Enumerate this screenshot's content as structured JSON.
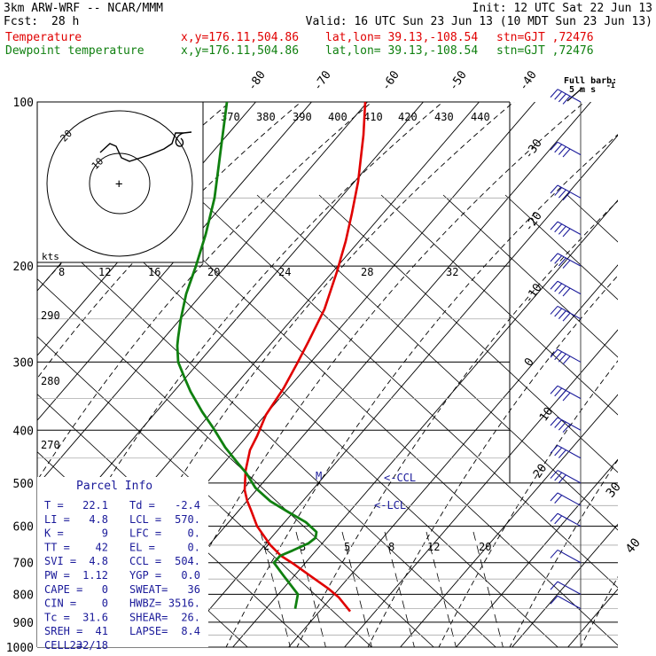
{
  "header": {
    "line1_left": "3km ARW-WRF -- NCAR/MMM",
    "line1_right": "Init: 12 UTC Sat 22 Jun 13",
    "fcst_label": "Fcst:",
    "fcst_value": "28 h",
    "valid": "Valid: 16 UTC Sun 23 Jun 13 (10 MDT Sun 23 Jun 13)",
    "temp_name": "Temperature",
    "dew_name": "Dewpoint temperature",
    "xy": "x,y=176.11,504.86",
    "latlon": "lat,lon= 39.13,-108.54",
    "stn": "stn=GJT ,72476",
    "barb_label_1": "Full barb:",
    "barb_label_2": "5 m s",
    "barb_label_exp": "-1"
  },
  "colors": {
    "temp": "#e00000",
    "dew": "#108010",
    "info": "#1a1a9a",
    "grid": "#000000"
  },
  "chart_data": {
    "type": "line",
    "title": "",
    "xlabel": "",
    "ylabel": "",
    "pressure_levels": [
      100,
      200,
      300,
      400,
      500,
      600,
      700,
      800,
      900,
      1000
    ],
    "minor_pressure_levels": [
      150,
      250,
      350,
      450,
      550,
      650,
      750,
      850,
      950
    ],
    "isotherm_labels": [
      -80,
      -70,
      -60,
      -50,
      -40,
      -30,
      -20,
      -10,
      0,
      10,
      20,
      30,
      40
    ],
    "theta_labels": [
      370,
      380,
      390,
      400,
      410,
      420,
      430,
      440
    ],
    "theta_e_labels": [
      290,
      280,
      270
    ],
    "mixing_ratio_labels": [
      2,
      3,
      5,
      8,
      12,
      20
    ],
    "series": [
      {
        "name": "Temperature",
        "points": [
          [
            412,
            100
          ],
          [
            410,
            115
          ],
          [
            404,
            140
          ],
          [
            397,
            160
          ],
          [
            390,
            180
          ],
          [
            380,
            205
          ],
          [
            366,
            240
          ],
          [
            348,
            275
          ],
          [
            336,
            300
          ],
          [
            320,
            335
          ],
          [
            300,
            375
          ],
          [
            290,
            410
          ],
          [
            282,
            435
          ],
          [
            277,
            475
          ],
          [
            276,
            515
          ],
          [
            279,
            540
          ],
          [
            283,
            560
          ],
          [
            290,
            600
          ],
          [
            305,
            650
          ],
          [
            317,
            680
          ],
          [
            332,
            705
          ],
          [
            350,
            740
          ],
          [
            370,
            780
          ],
          [
            382,
            810
          ],
          [
            395,
            860
          ]
        ]
      },
      {
        "name": "Dewpoint temperature",
        "points": [
          [
            256,
            100
          ],
          [
            242,
            150
          ],
          [
            232,
            175
          ],
          [
            221,
            200
          ],
          [
            210,
            225
          ],
          [
            204,
            250
          ],
          [
            201,
            270
          ],
          [
            200,
            280
          ],
          [
            201,
            300
          ],
          [
            208,
            320
          ],
          [
            215,
            340
          ],
          [
            228,
            370
          ],
          [
            240,
            395
          ],
          [
            254,
            430
          ],
          [
            266,
            455
          ],
          [
            278,
            480
          ],
          [
            288,
            510
          ],
          [
            305,
            540
          ],
          [
            325,
            565
          ],
          [
            345,
            590
          ],
          [
            357,
            615
          ],
          [
            356,
            630
          ],
          [
            348,
            645
          ],
          [
            330,
            665
          ],
          [
            316,
            680
          ],
          [
            309,
            700
          ],
          [
            320,
            740
          ],
          [
            336,
            800
          ],
          [
            333,
            850
          ]
        ]
      }
    ],
    "wind_barbs": [
      {
        "p": 100,
        "speed": 40,
        "dir": 280
      },
      {
        "p": 125,
        "speed": 40,
        "dir": 280
      },
      {
        "p": 150,
        "speed": 40,
        "dir": 275
      },
      {
        "p": 175,
        "speed": 35,
        "dir": 275
      },
      {
        "p": 200,
        "speed": 35,
        "dir": 275
      },
      {
        "p": 225,
        "speed": 30,
        "dir": 270
      },
      {
        "p": 250,
        "speed": 30,
        "dir": 270
      },
      {
        "p": 300,
        "speed": 25,
        "dir": 265
      },
      {
        "p": 350,
        "speed": 20,
        "dir": 265
      },
      {
        "p": 400,
        "speed": 20,
        "dir": 260
      },
      {
        "p": 450,
        "speed": 15,
        "dir": 260
      },
      {
        "p": 500,
        "speed": 15,
        "dir": 255
      },
      {
        "p": 550,
        "speed": 10,
        "dir": 250
      },
      {
        "p": 600,
        "speed": 10,
        "dir": 245
      },
      {
        "p": 700,
        "speed": 5,
        "dir": 230
      },
      {
        "p": 800,
        "speed": 5,
        "dir": 200
      },
      {
        "p": 850,
        "speed": 5,
        "dir": 180
      }
    ],
    "hodograph": {
      "label": "kts",
      "ring_labels": [
        "10",
        "20"
      ],
      "speed_ticks": [
        "8",
        "12",
        "16",
        "20",
        "24",
        "28",
        "32"
      ]
    },
    "markers": {
      "ccl": "<-CCL",
      "lcl": "<-LCL",
      "m": "M"
    },
    "corner_labels": [
      "30",
      "40"
    ]
  },
  "parcel_info": {
    "title": "Parcel Info",
    "rows": [
      [
        "T  =",
        "22.1",
        "Td =",
        "-2.4"
      ],
      [
        "LI =",
        "4.8",
        "LCL =",
        "570."
      ],
      [
        "K  =",
        "9",
        "LFC =",
        "0."
      ],
      [
        "TT =",
        "42",
        "EL  =",
        "0."
      ],
      [
        "SVI =",
        "4.8",
        "CCL =",
        "504."
      ],
      [
        "PW =",
        "1.12",
        "YGP =",
        "0.0"
      ],
      [
        "CAPE =",
        "0",
        "SWEAT=",
        "36"
      ],
      [
        "CIN  =",
        "0",
        "HWBZ=",
        "3516."
      ],
      [
        "Tc  =",
        "31.6",
        "SHEAR=",
        "26."
      ],
      [
        "SREH =",
        "41",
        "LAPSE=",
        "8.4"
      ],
      [
        "CELL =",
        "232/18",
        "",
        ""
      ]
    ]
  }
}
